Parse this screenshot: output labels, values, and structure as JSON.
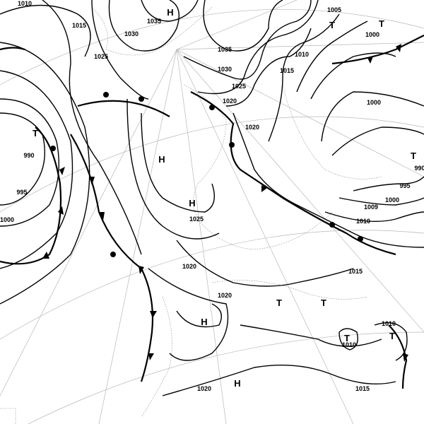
{
  "map": {
    "type": "surface pressure analysis",
    "isobar_labels": [
      "1010",
      "1015",
      "1030",
      "1035",
      "1025",
      "1035",
      "1030",
      "1025",
      "1020",
      "1015",
      "1010",
      "1005",
      "1000",
      "1000",
      "990",
      "995",
      "1000",
      "1025",
      "1020",
      "1020",
      "1020",
      "1015",
      "1010",
      "1009",
      "1000",
      "995",
      "990",
      "1010",
      "1010",
      "1020",
      "1015"
    ],
    "centers": [
      "H",
      "T",
      "T",
      "T",
      "H",
      "H",
      "H",
      "T",
      "T",
      "T",
      "T",
      "T",
      "H"
    ]
  }
}
